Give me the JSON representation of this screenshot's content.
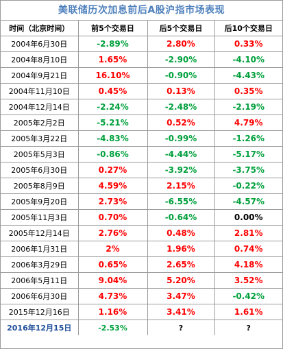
{
  "title": "美联储历次加息前后A股沪指市场表现",
  "headers": [
    "时间（北京时间）",
    "前5个交易日",
    "后5个交易日",
    "后10个交易日"
  ],
  "rows": [
    {
      "date": "2004年6月30日",
      "before5": "-2.89%",
      "after5": "2.80%",
      "after10": "0.33%"
    },
    {
      "date": "2004年8月10日",
      "before5": "1.65%",
      "after5": "-2.90%",
      "after10": "-4.10%"
    },
    {
      "date": "2004年9月21日",
      "before5": "16.10%",
      "after5": "-0.90%",
      "after10": "-4.43%"
    },
    {
      "date": "2004年11月10日",
      "before5": "0.45%",
      "after5": "0.13%",
      "after10": "0.35%"
    },
    {
      "date": "2004年12月14日",
      "before5": "-2.24%",
      "after5": "-2.48%",
      "after10": "-2.19%"
    },
    {
      "date": "2005年2月2日",
      "before5": "-5.21%",
      "after5": "0.52%",
      "after10": "4.79%"
    },
    {
      "date": "2005年3月22日",
      "before5": "-4.83%",
      "after5": "-0.99%",
      "after10": "-1.26%"
    },
    {
      "date": "2005年5月3日",
      "before5": "-0.86%",
      "after5": "-4.44%",
      "after10": "-5.17%"
    },
    {
      "date": "2005年6月30日",
      "before5": "0.27%",
      "after5": "-3.92%",
      "after10": "-3.75%"
    },
    {
      "date": "2005年8月9日",
      "before5": "4.59%",
      "after5": "2.15%",
      "after10": "-0.22%"
    },
    {
      "date": "2005年9月20日",
      "before5": "2.73%",
      "after5": "-6.55%",
      "after10": "-4.57%"
    },
    {
      "date": "2005年11月3日",
      "before5": "0.70%",
      "after5": "-0.64%",
      "after10": "0.00%"
    },
    {
      "date": "2005年12月14日",
      "before5": "2.76%",
      "after5": "0.48%",
      "after10": "2.81%"
    },
    {
      "date": "2006年1月31日",
      "before5": "2%",
      "after5": "1.96%",
      "after10": "0.74%"
    },
    {
      "date": "2006年3月29日",
      "before5": "0.65%",
      "after5": "2.65%",
      "after10": "4.18%"
    },
    {
      "date": "2006年5月11日",
      "before5": "9.04%",
      "after5": "5.20%",
      "after10": "3.52%"
    },
    {
      "date": "2006年6月30日",
      "before5": "4.73%",
      "after5": "3.47%",
      "after10": "-0.42%"
    },
    {
      "date": "2015年12月16日",
      "before5": "1.16%",
      "after5": "3.41%",
      "after10": "1.61%"
    },
    {
      "date": "2016年12月15日",
      "before5": "-2.53%",
      "after5": "?",
      "after10": "?"
    }
  ],
  "colors": {
    "title": "#4f81bd",
    "positive": "#ff0000",
    "negative": "#00a03c",
    "last_date": "#1f4e9c",
    "border": "#9a9a9a"
  }
}
